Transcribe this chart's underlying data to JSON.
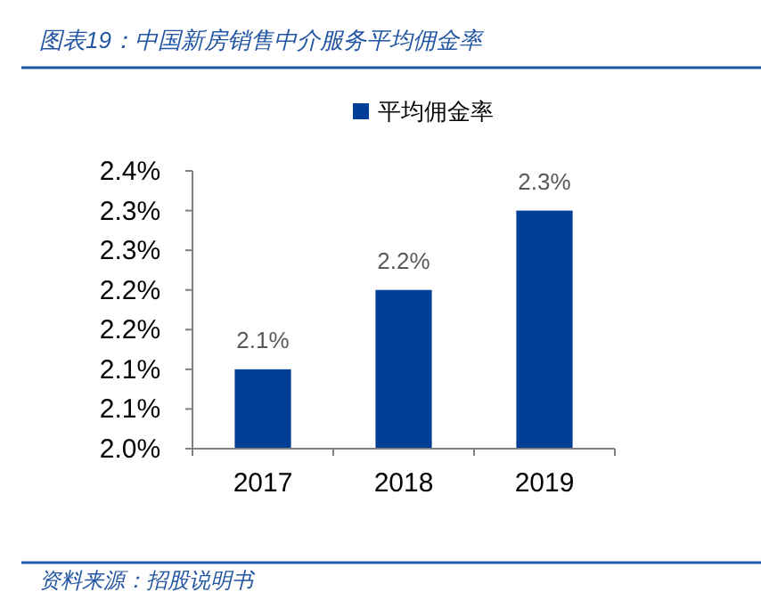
{
  "chart_data": {
    "type": "bar",
    "title": "图表19：中国新房销售中介服务平均佣金率",
    "categories": [
      "2017",
      "2018",
      "2019"
    ],
    "series": [
      {
        "name": "平均佣金率",
        "color": "#003f98",
        "values": [
          2.1,
          2.2,
          2.3
        ],
        "value_labels": [
          "2.1%",
          "2.2%",
          "2.3%"
        ]
      }
    ],
    "ylim": [
      2.0,
      2.35
    ],
    "yticks": [
      {
        "value": 2.0,
        "label": "2.0%"
      },
      {
        "value": 2.05,
        "label": "2.1%"
      },
      {
        "value": 2.1,
        "label": "2.1%"
      },
      {
        "value": 2.15,
        "label": "2.2%"
      },
      {
        "value": 2.2,
        "label": "2.2%"
      },
      {
        "value": 2.25,
        "label": "2.3%"
      },
      {
        "value": 2.3,
        "label": "2.3%"
      },
      {
        "value": 2.35,
        "label": "2.4%"
      }
    ],
    "legend": "top",
    "grid": false,
    "annotations": [
      "资料来源：招股说明书"
    ]
  }
}
